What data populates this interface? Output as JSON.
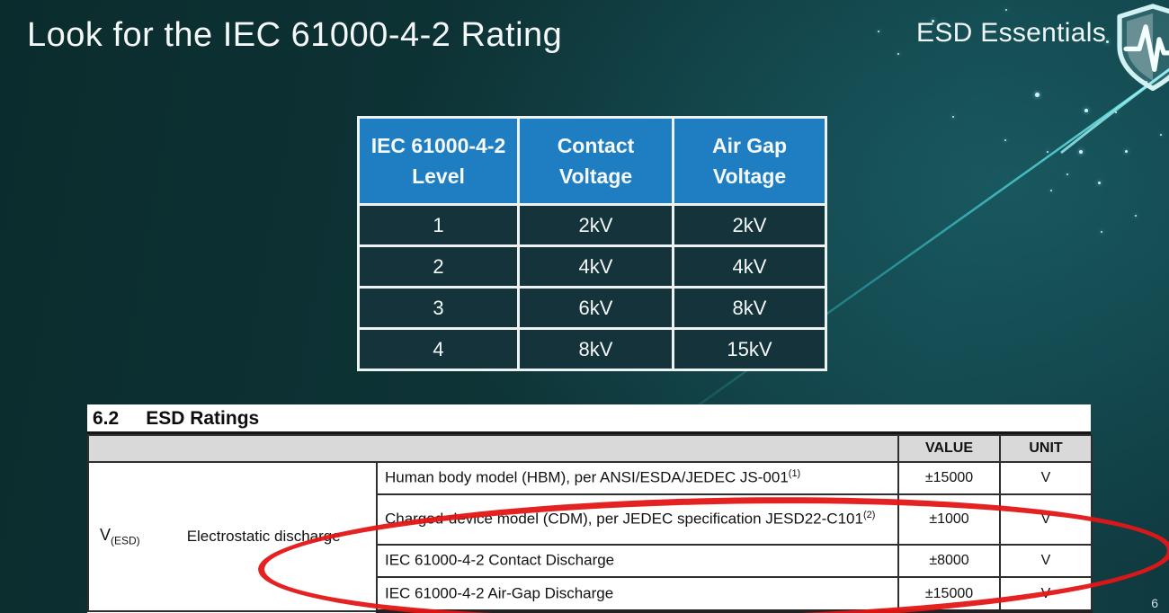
{
  "slide": {
    "title": "Look for the IEC 61000-4-2 Rating",
    "brand": "ESD Essentials",
    "page_number": "6",
    "background_color": "#0e3437",
    "streak_color": "#39dbe2"
  },
  "level_table": {
    "header_bg": "#1f7dc2",
    "body_bg": "#14333a",
    "headers": [
      {
        "line1": "IEC 61000-4-2",
        "line2": "Level"
      },
      {
        "line1": "Contact",
        "line2": "Voltage"
      },
      {
        "line1": "Air Gap",
        "line2": "Voltage"
      }
    ],
    "rows": [
      {
        "level": "1",
        "contact": "2kV",
        "airgap": "2kV"
      },
      {
        "level": "2",
        "contact": "4kV",
        "airgap": "4kV"
      },
      {
        "level": "3",
        "contact": "6kV",
        "airgap": "8kV"
      },
      {
        "level": "4",
        "contact": "8kV",
        "airgap": "15kV"
      }
    ]
  },
  "datasheet": {
    "section_number": "6.2",
    "section_title": "ESD Ratings",
    "value_header": "VALUE",
    "unit_header": "UNIT",
    "symbol": "V",
    "symbol_subscript": "(ESD)",
    "parameter": "Electrostatic discharge",
    "rows": [
      {
        "condition": "Human body model (HBM), per ANSI/ESDA/JEDEC JS-001",
        "footnote": "(1)",
        "value": "±15000",
        "unit": "V"
      },
      {
        "condition": "Charged-device model (CDM), per JEDEC specification JESD22-C101",
        "footnote": "(2)",
        "value": "±1000",
        "unit": "V"
      },
      {
        "condition": "IEC 61000-4-2 Contact Discharge",
        "footnote": "",
        "value": "±8000",
        "unit": "V"
      },
      {
        "condition": "IEC 61000-4-2 Air-Gap Discharge",
        "footnote": "",
        "value": "±15000",
        "unit": "V"
      }
    ],
    "highlight_color": "#e31616"
  }
}
